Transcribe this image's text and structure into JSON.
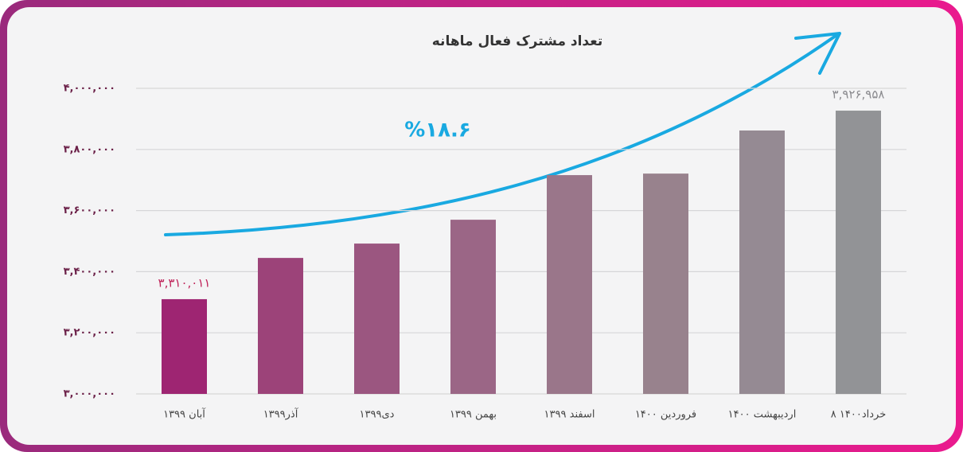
{
  "chart_data": {
    "type": "bar",
    "title": "تعداد مشترک فعال ماهانه",
    "annotation": "%۱۸.۶",
    "categories": [
      "آبان ۱۳۹۹",
      "آذر۱۳۹۹",
      "دی۱۳۹۹",
      "بهمن ۱۳۹۹",
      "اسفند ۱۳۹۹",
      "فروردین ۱۴۰۰",
      "اردیبهشت ۱۴۰۰",
      "۸ خرداد۱۴۰۰"
    ],
    "values": [
      3310011,
      3445000,
      3492000,
      3570000,
      3716000,
      3721000,
      3862000,
      3926958
    ],
    "value_labels": [
      "۳,۳۱۰,۰۱۱",
      null,
      null,
      null,
      null,
      null,
      null,
      "۳,۹۲۶,۹۵۸"
    ],
    "colors": [
      "#9e2572",
      "#9c4379",
      "#9b5680",
      "#9b6686",
      "#9a768a",
      "#98828d",
      "#958a93",
      "#929396"
    ],
    "value_label_colors": [
      "#c0245a",
      null,
      null,
      null,
      null,
      null,
      null,
      "#8a8a8e"
    ],
    "ylim": [
      3000000,
      4000000
    ],
    "yticks": [
      {
        "value": 3000000,
        "label": "۳,۰۰۰,۰۰۰"
      },
      {
        "value": 3200000,
        "label": "۳,۲۰۰,۰۰۰"
      },
      {
        "value": 3400000,
        "label": "۳,۴۰۰,۰۰۰"
      },
      {
        "value": 3600000,
        "label": "۳,۶۰۰,۰۰۰"
      },
      {
        "value": 3800000,
        "label": "۳,۸۰۰,۰۰۰"
      },
      {
        "value": 4000000,
        "label": "۴,۰۰۰,۰۰۰"
      }
    ],
    "grid": true
  }
}
